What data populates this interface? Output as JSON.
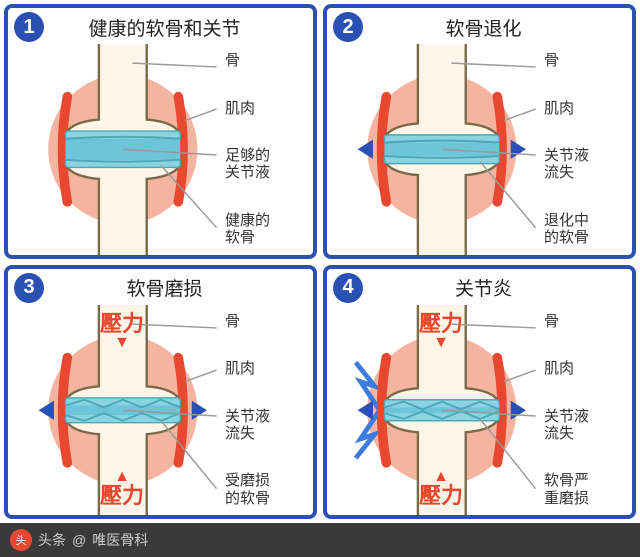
{
  "colors": {
    "border": "#2a50b3",
    "badge_bg": "#2a50b3",
    "badge_text": "#ffffff",
    "bone_fill": "#fdf6e8",
    "bone_stroke": "#7a6a4a",
    "cartilage": "#8bd3e0",
    "cartilage_edge": "#4aa8b8",
    "muscle": "#f5b4a0",
    "tendon": "#e8482f",
    "fluid": "#6cc5d8",
    "pressure_text": "#e8482f",
    "spark": "#3d7be0",
    "footer_bg": "#3a3a3a",
    "footer_text": "#cccccc",
    "footer_logo_bg": "#e8482f"
  },
  "panels": [
    {
      "num": "1",
      "title": "健康的软骨和关节",
      "labels": [
        "骨",
        "肌肉",
        "足够的\n关节液",
        "健康的\n软骨"
      ],
      "fluid_thickness": 22,
      "cartilage_worn": false,
      "show_side_markers": false,
      "show_pressure": false,
      "show_sparks": false
    },
    {
      "num": "2",
      "title": "软骨退化",
      "labels": [
        "骨",
        "肌肉",
        "关节液\n流失",
        "退化中\n的软骨"
      ],
      "fluid_thickness": 14,
      "cartilage_worn": false,
      "show_side_markers": true,
      "show_pressure": false,
      "show_sparks": false
    },
    {
      "num": "3",
      "title": "软骨磨损",
      "labels": [
        "骨",
        "肌肉",
        "关节液\n流失",
        "受磨损\n的软骨"
      ],
      "fluid_thickness": 10,
      "cartilage_worn": true,
      "show_side_markers": true,
      "show_pressure": true,
      "show_sparks": false
    },
    {
      "num": "4",
      "title": "关节炎",
      "labels": [
        "骨",
        "肌肉",
        "关节液\n流失",
        "软骨严\n重磨损"
      ],
      "fluid_thickness": 6,
      "cartilage_worn": true,
      "show_side_markers": true,
      "show_pressure": true,
      "show_sparks": true
    }
  ],
  "pressure_text": "壓力",
  "footer": {
    "prefix": "头条",
    "sep": "@",
    "name": "唯医骨科"
  }
}
